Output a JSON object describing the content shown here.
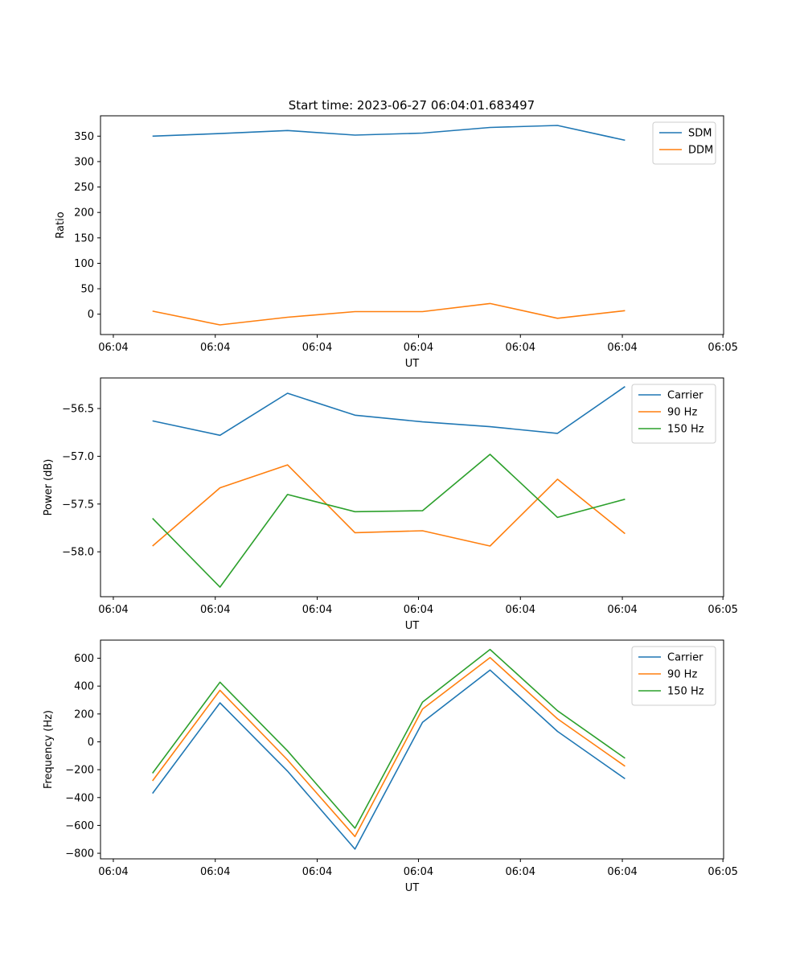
{
  "figure": {
    "title": "Start time: 2023-06-27 06:04:01.683497"
  },
  "chart_data": [
    {
      "type": "line",
      "title": "Start time: 2023-06-27 06:04:01.683497",
      "xlabel": "UT",
      "ylabel": "Ratio",
      "x": [
        1,
        2,
        3,
        4,
        5,
        6,
        7,
        8
      ],
      "xlim": [
        0.23,
        9.46
      ],
      "ylim": [
        -40,
        390
      ],
      "xticks": [
        0.42,
        1.93,
        3.44,
        4.94,
        6.45,
        7.96,
        9.45
      ],
      "xtick_labels": [
        "06:04",
        "06:04",
        "06:04",
        "06:04",
        "06:04",
        "06:04",
        "06:05"
      ],
      "yticks": [
        0,
        50,
        100,
        150,
        200,
        250,
        300,
        350
      ],
      "ytick_labels": [
        "0",
        "50",
        "100",
        "150",
        "200",
        "250",
        "300",
        "350"
      ],
      "grid": false,
      "legend": "upper right",
      "series": [
        {
          "name": "SDM",
          "color": "#1f77b4",
          "values": [
            350,
            355,
            361,
            352,
            356,
            367,
            371,
            342
          ]
        },
        {
          "name": "DDM",
          "color": "#ff7f0e",
          "values": [
            6,
            -21,
            -6,
            5,
            5,
            21,
            -8,
            7
          ]
        }
      ]
    },
    {
      "type": "line",
      "title": "",
      "xlabel": "UT",
      "ylabel": "Power (dB)",
      "x": [
        1,
        2,
        3,
        4,
        5,
        6,
        7,
        8
      ],
      "xlim": [
        0.23,
        9.46
      ],
      "ylim": [
        -58.47,
        -56.18
      ],
      "xticks": [
        0.42,
        1.93,
        3.44,
        4.94,
        6.45,
        7.96,
        9.45
      ],
      "xtick_labels": [
        "06:04",
        "06:04",
        "06:04",
        "06:04",
        "06:04",
        "06:04",
        "06:05"
      ],
      "yticks": [
        -58.0,
        -57.5,
        -57.0,
        -56.5
      ],
      "ytick_labels": [
        "−58.0",
        "−57.5",
        "−57.0",
        "−56.5"
      ],
      "grid": false,
      "legend": "upper right",
      "series": [
        {
          "name": "Carrier",
          "color": "#1f77b4",
          "values": [
            -56.63,
            -56.78,
            -56.34,
            -56.57,
            -56.64,
            -56.69,
            -56.76,
            -56.27
          ]
        },
        {
          "name": "90 Hz",
          "color": "#ff7f0e",
          "values": [
            -57.94,
            -57.33,
            -57.09,
            -57.8,
            -57.78,
            -57.94,
            -57.24,
            -57.81
          ]
        },
        {
          "name": "150 Hz",
          "color": "#2ca02c",
          "values": [
            -57.65,
            -58.37,
            -57.4,
            -57.58,
            -57.57,
            -56.98,
            -57.64,
            -57.45
          ]
        }
      ]
    },
    {
      "type": "line",
      "title": "",
      "xlabel": "UT",
      "ylabel": "Frequency (Hz)",
      "x": [
        1,
        2,
        3,
        4,
        5,
        6,
        7,
        8
      ],
      "xlim": [
        0.23,
        9.46
      ],
      "ylim": [
        -840,
        730
      ],
      "xticks": [
        0.42,
        1.93,
        3.44,
        4.94,
        6.45,
        7.96,
        9.45
      ],
      "xtick_labels": [
        "06:04",
        "06:04",
        "06:04",
        "06:04",
        "06:04",
        "06:04",
        "06:05"
      ],
      "yticks": [
        -800,
        -600,
        -400,
        -200,
        0,
        200,
        400,
        600
      ],
      "ytick_labels": [
        "−800",
        "−600",
        "−400",
        "−200",
        "0",
        "200",
        "400",
        "600"
      ],
      "grid": false,
      "legend": "upper right",
      "series": [
        {
          "name": "Carrier",
          "color": "#1f77b4",
          "values": [
            -370,
            280,
            -210,
            -770,
            140,
            515,
            75,
            -265
          ]
        },
        {
          "name": "90 Hz",
          "color": "#ff7f0e",
          "values": [
            -280,
            370,
            -130,
            -680,
            235,
            605,
            165,
            -175
          ]
        },
        {
          "name": "150 Hz",
          "color": "#2ca02c",
          "values": [
            -225,
            428,
            -65,
            -620,
            285,
            663,
            223,
            -118
          ]
        }
      ]
    }
  ]
}
